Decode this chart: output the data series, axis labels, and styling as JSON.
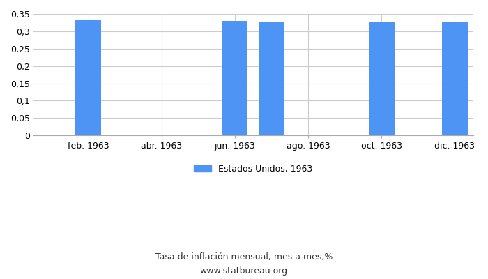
{
  "n_months": 12,
  "bar_positions": [
    2,
    6,
    7,
    10,
    12
  ],
  "bar_values": [
    0.331,
    0.329,
    0.327,
    0.326,
    0.326
  ],
  "xtick_positions": [
    2,
    4,
    6,
    8,
    10,
    12
  ],
  "xtick_labels": [
    "feb. 1963",
    "abr. 1963",
    "jun. 1963",
    "ago. 1963",
    "oct. 1963",
    "dic. 1963"
  ],
  "bar_color": "#4d94f5",
  "ylim": [
    0,
    0.35
  ],
  "yticks": [
    0,
    0.05,
    0.1,
    0.15,
    0.2,
    0.25,
    0.3,
    0.35
  ],
  "ytick_labels": [
    "0",
    "0,05",
    "0,1",
    "0,15",
    "0,2",
    "0,25",
    "0,3",
    "0,35"
  ],
  "legend_label": "Estados Unidos, 1963",
  "subtitle": "Tasa de inflación mensual, mes a mes,%",
  "website": "www.statbureau.org",
  "bg_color": "#ffffff",
  "grid_color": "#cccccc"
}
